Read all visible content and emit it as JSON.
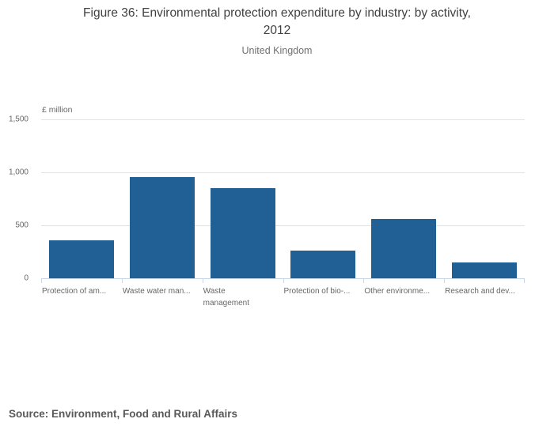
{
  "header": {
    "title_line1": "Figure 36: Environmental protection expenditure by industry: by activity,",
    "title_line2": "2012",
    "subtitle": "United Kingdom"
  },
  "chart_data": {
    "type": "bar",
    "title": "Figure 36: Environmental protection expenditure by industry: by activity, 2012",
    "subtitle": "United Kingdom",
    "unit_label": "£ million",
    "categories": [
      "Protection of am...",
      "Waste water man...",
      "Waste\nmanagement",
      "Protection of bio-...",
      "Other environme...",
      "Research and dev..."
    ],
    "values": [
      360,
      955,
      850,
      260,
      560,
      148
    ],
    "ylim": [
      0,
      1500
    ],
    "yticks": [
      {
        "label": "1,500",
        "value": 1500
      },
      {
        "label": "1,000",
        "value": 1000
      },
      {
        "label": "500",
        "value": 500
      },
      {
        "label": "0",
        "value": 0
      }
    ],
    "grid": true,
    "legend": "none",
    "colors": {
      "bar": "#206095",
      "axis_line": "#c9d6e8",
      "gridline": "#e3e3e3",
      "title_text": "#414042",
      "muted_text": "#666666",
      "source_text": "#595959"
    }
  },
  "footer": {
    "source": "Source: Environment, Food and Rural Affairs"
  }
}
